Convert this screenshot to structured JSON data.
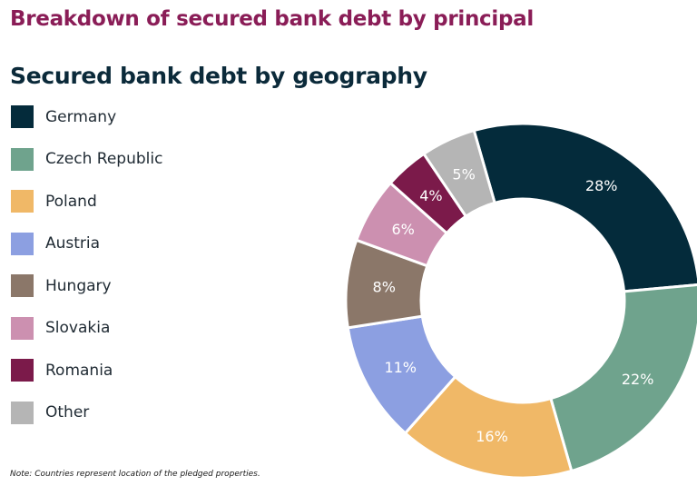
{
  "header": {
    "title": "Breakdown of secured bank debt by principal"
  },
  "note": "Note: Countries represent location of the pledged properties.",
  "chart_data": {
    "type": "pie",
    "variant": "donut",
    "title": "Secured bank debt by geography",
    "legend_position": "left",
    "unit": "%",
    "categories": [
      "Germany",
      "Czech Republic",
      "Poland",
      "Austria",
      "Hungary",
      "Slovakia",
      "Romania",
      "Other"
    ],
    "values": [
      28,
      22,
      16,
      11,
      8,
      6,
      4,
      5
    ],
    "labels": [
      "28%",
      "22%",
      "16%",
      "11%",
      "8%",
      "6%",
      "4%",
      "5%"
    ],
    "colors": [
      "#042b3b",
      "#6fa38d",
      "#f0b867",
      "#8c9fe1",
      "#8b7769",
      "#cc90b0",
      "#7b1a4a",
      "#b5b5b5"
    ]
  }
}
